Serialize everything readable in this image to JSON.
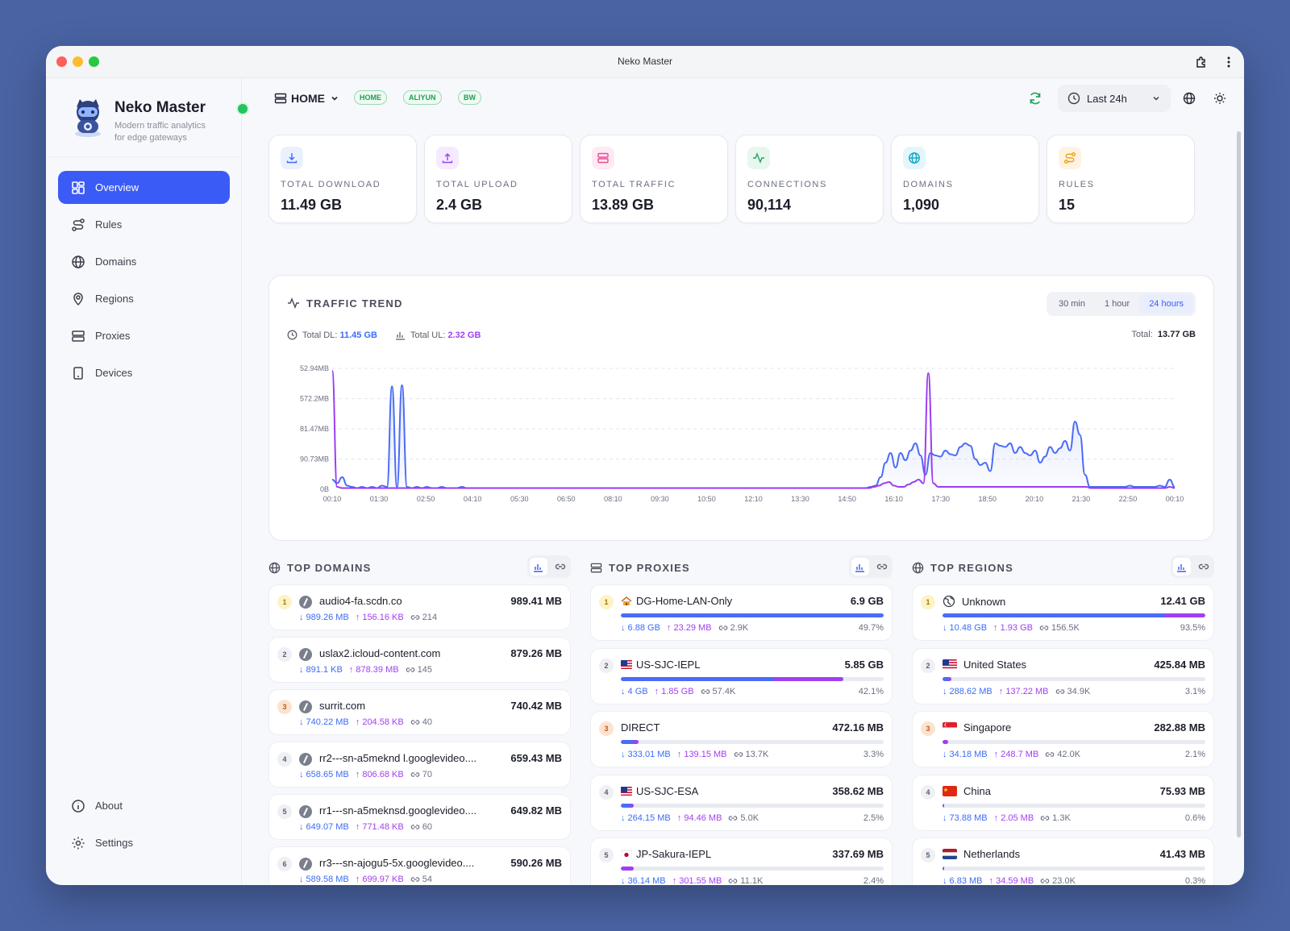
{
  "window": {
    "title": "Neko Master"
  },
  "brand": {
    "name": "Neko Master",
    "tagline_1": "Modern traffic analytics",
    "tagline_2": "for edge gateways"
  },
  "nav": {
    "items": [
      "Overview",
      "Rules",
      "Domains",
      "Regions",
      "Proxies",
      "Devices"
    ],
    "bottom": [
      "About",
      "Settings"
    ]
  },
  "topbar": {
    "gateway": "HOME",
    "chips": [
      "HOME",
      "ALIYUN",
      "BW"
    ],
    "time_range": "Last 24h"
  },
  "stats": [
    {
      "label": "TOTAL DOWNLOAD",
      "value": "11.49 GB",
      "icon": "download-icon",
      "color": "#3b6cf6",
      "bg": "#eaf0fe"
    },
    {
      "label": "TOTAL UPLOAD",
      "value": "2.4 GB",
      "icon": "upload-icon",
      "color": "#a13ff0",
      "bg": "#f4ebfe"
    },
    {
      "label": "TOTAL TRAFFIC",
      "value": "13.89 GB",
      "icon": "server-icon",
      "color": "#ec4899",
      "bg": "#fdeaf3"
    },
    {
      "label": "CONNECTIONS",
      "value": "90,114",
      "icon": "activity-icon",
      "color": "#22a55e",
      "bg": "#e7f7ee"
    },
    {
      "label": "DOMAINS",
      "value": "1,090",
      "icon": "globe-icon",
      "color": "#0ea5c6",
      "bg": "#e4f6fa"
    },
    {
      "label": "RULES",
      "value": "15",
      "icon": "route-icon",
      "color": "#f59e0b",
      "bg": "#fef3e2"
    }
  ],
  "trend": {
    "title": "TRAFFIC TREND",
    "ranges": [
      "30 min",
      "1 hour",
      "24 hours"
    ],
    "active_range": "24 hours",
    "total_dl_label": "Total DL:",
    "total_dl": "11.45 GB",
    "total_ul_label": "Total UL:",
    "total_ul": "2.32 GB",
    "total_label": "Total:",
    "total": "13.77 GB"
  },
  "chart_data": {
    "type": "area",
    "y_tick_labels": [
      "52.94MB",
      "572.2MB",
      "81.47MB",
      "90.73MB",
      "0B"
    ],
    "x_tick_labels": [
      "00:10",
      "01:30",
      "02:50",
      "04:10",
      "05:30",
      "06:50",
      "08:10",
      "09:30",
      "10:50",
      "12:10",
      "13:30",
      "14:50",
      "16:10",
      "17:30",
      "18:50",
      "20:10",
      "21:30",
      "22:50",
      "00:10"
    ],
    "grid": true,
    "series": [
      {
        "color": "#4a6cf7",
        "values": [
          0.08,
          0.05,
          0.1,
          0.03,
          0.02,
          0.01,
          0.02,
          0.01,
          0.02,
          0.01,
          0.03,
          0.02,
          0.85,
          0.02,
          0.86,
          0.02,
          0.01,
          0.02,
          0.01,
          0.02,
          0.01,
          0.01,
          0.02,
          0.01,
          0.01,
          0.01,
          0.02,
          0.01,
          0.01,
          0.01,
          0.01,
          0.01,
          0.01,
          0.01,
          0.01,
          0.01,
          0.01,
          0.01,
          0.01,
          0.01,
          0.01,
          0.01,
          0.01,
          0.01,
          0.01,
          0.01,
          0.01,
          0.01,
          0.01,
          0.01,
          0.01,
          0.01,
          0.01,
          0.01,
          0.01,
          0.01,
          0.01,
          0.01,
          0.01,
          0.01,
          0.01,
          0.01,
          0.01,
          0.01,
          0.01,
          0.01,
          0.01,
          0.01,
          0.01,
          0.01,
          0.01,
          0.01,
          0.01,
          0.01,
          0.01,
          0.01,
          0.01,
          0.01,
          0.01,
          0.01,
          0.01,
          0.01,
          0.01,
          0.01,
          0.01,
          0.01,
          0.01,
          0.01,
          0.01,
          0.01,
          0.01,
          0.01,
          0.01,
          0.01,
          0.01,
          0.01,
          0.01,
          0.01,
          0.01,
          0.01,
          0.01,
          0.01,
          0.01,
          0.01,
          0.01,
          0.01,
          0.01,
          0.01,
          0.02,
          0.03,
          0.1,
          0.22,
          0.3,
          0.18,
          0.3,
          0.24,
          0.32,
          0.38,
          0.28,
          0.12,
          0.3,
          0.28,
          0.27,
          0.32,
          0.29,
          0.28,
          0.35,
          0.38,
          0.36,
          0.25,
          0.2,
          0.22,
          0.15,
          0.38,
          0.36,
          0.35,
          0.38,
          0.3,
          0.35,
          0.3,
          0.28,
          0.32,
          0.22,
          0.27,
          0.35,
          0.3,
          0.34,
          0.4,
          0.32,
          0.56,
          0.45,
          0.12,
          0.02,
          0.02,
          0.02,
          0.02,
          0.02,
          0.02,
          0.02,
          0.02,
          0.03,
          0.02,
          0.02,
          0.02,
          0.02,
          0.02,
          0.03,
          0.02,
          0.08,
          0.02
        ],
        "name": ""
      },
      {
        "color": "#9b3df0",
        "values": [
          0.98,
          0.02,
          0.01,
          0.01,
          0.01,
          0.01,
          0.01,
          0.01,
          0.01,
          0.01,
          0.01,
          0.01,
          0.01,
          0.01,
          0.01,
          0.01,
          0.01,
          0.01,
          0.01,
          0.01,
          0.01,
          0.01,
          0.01,
          0.01,
          0.01,
          0.01,
          0.01,
          0.01,
          0.01,
          0.01,
          0.01,
          0.01,
          0.01,
          0.01,
          0.01,
          0.01,
          0.01,
          0.01,
          0.01,
          0.01,
          0.01,
          0.01,
          0.01,
          0.01,
          0.01,
          0.01,
          0.01,
          0.01,
          0.01,
          0.01,
          0.01,
          0.01,
          0.01,
          0.01,
          0.01,
          0.01,
          0.01,
          0.01,
          0.01,
          0.01,
          0.01,
          0.01,
          0.01,
          0.01,
          0.01,
          0.01,
          0.01,
          0.01,
          0.01,
          0.01,
          0.01,
          0.01,
          0.01,
          0.01,
          0.01,
          0.01,
          0.01,
          0.01,
          0.01,
          0.01,
          0.01,
          0.01,
          0.01,
          0.01,
          0.01,
          0.01,
          0.01,
          0.01,
          0.01,
          0.01,
          0.01,
          0.01,
          0.01,
          0.01,
          0.01,
          0.01,
          0.01,
          0.01,
          0.01,
          0.01,
          0.01,
          0.01,
          0.01,
          0.01,
          0.01,
          0.01,
          0.01,
          0.01,
          0.01,
          0.01,
          0.02,
          0.03,
          0.05,
          0.06,
          0.03,
          0.02,
          0.02,
          0.04,
          0.06,
          0.08,
          0.05,
          0.96,
          0.05,
          0.02,
          0.02,
          0.02,
          0.02,
          0.02,
          0.02,
          0.02,
          0.02,
          0.02,
          0.02,
          0.02,
          0.02,
          0.02,
          0.02,
          0.02,
          0.02,
          0.02,
          0.02,
          0.02,
          0.02,
          0.02,
          0.02,
          0.02,
          0.02,
          0.02,
          0.02,
          0.02,
          0.02,
          0.02,
          0.02,
          0.02,
          0.01,
          0.01,
          0.01,
          0.01,
          0.01,
          0.01,
          0.01,
          0.01,
          0.01,
          0.01,
          0.01,
          0.01,
          0.01,
          0.01,
          0.01,
          0.01,
          0.02,
          0.01
        ],
        "name": ""
      }
    ]
  },
  "top_domains": {
    "title": "TOP DOMAINS",
    "items": [
      {
        "rank": "1",
        "name": "audio4-fa.scdn.co",
        "value": "989.41 MB",
        "dl": "↓ 989.26 MB",
        "ul": "↑ 156.16 KB",
        "count": "214"
      },
      {
        "rank": "2",
        "name": "uslax2.icloud-content.com",
        "value": "879.26 MB",
        "dl": "↓ 891.1 KB",
        "ul": "↑ 878.39 MB",
        "count": "145"
      },
      {
        "rank": "3",
        "name": "surrit.com",
        "value": "740.42 MB",
        "dl": "↓ 740.22 MB",
        "ul": "↑ 204.58 KB",
        "count": "40"
      },
      {
        "rank": "4",
        "name": "rr2---sn-a5meknd l.googlevideo....",
        "value": "659.43 MB",
        "dl": "↓ 658.65 MB",
        "ul": "↑ 806.68 KB",
        "count": "70"
      },
      {
        "rank": "5",
        "name": "rr1---sn-a5meknsd.googlevideo....",
        "value": "649.82 MB",
        "dl": "↓ 649.07 MB",
        "ul": "↑ 771.48 KB",
        "count": "60"
      },
      {
        "rank": "6",
        "name": "rr3---sn-ajogu5-5x.googlevideo....",
        "value": "590.26 MB",
        "dl": "↓ 589.58 MB",
        "ul": "↑ 699.97 KB",
        "count": "54"
      }
    ]
  },
  "top_proxies": {
    "title": "TOP PROXIES",
    "items": [
      {
        "rank": "1",
        "name": "DG-Home-LAN-Only",
        "prefix": "🏠",
        "value": "6.9 GB",
        "dl": "↓ 6.88 GB",
        "ul": "↑ 23.29 MB",
        "count": "2.9K",
        "pct": "49.7%",
        "share": 1.0,
        "dl_share": 0.997
      },
      {
        "rank": "2",
        "name": "US-SJC-IEPL",
        "prefix": "🇺🇸",
        "value": "5.85 GB",
        "dl": "↓ 4 GB",
        "ul": "↑ 1.85 GB",
        "count": "57.4K",
        "pct": "42.1%",
        "share": 0.847,
        "dl_share": 0.684
      },
      {
        "rank": "3",
        "name": "DIRECT",
        "prefix": "",
        "value": "472.16 MB",
        "dl": "↓ 333.01 MB",
        "ul": "↑ 139.15 MB",
        "count": "13.7K",
        "pct": "3.3%",
        "share": 0.067,
        "dl_share": 0.705
      },
      {
        "rank": "4",
        "name": "US-SJC-ESA",
        "prefix": "🇺🇸",
        "value": "358.62 MB",
        "dl": "↓ 264.15 MB",
        "ul": "↑ 94.46 MB",
        "count": "5.0K",
        "pct": "2.5%",
        "share": 0.05,
        "dl_share": 0.737
      },
      {
        "rank": "5",
        "name": "JP-Sakura-IEPL",
        "prefix": "🇯🇵",
        "value": "337.69 MB",
        "dl": "↓ 36.14 MB",
        "ul": "↑ 301.55 MB",
        "count": "11.1K",
        "pct": "2.4%",
        "share": 0.048,
        "dl_share": 0.107
      }
    ]
  },
  "top_regions": {
    "title": "TOP REGIONS",
    "items": [
      {
        "rank": "1",
        "name": "Unknown",
        "flag": "unknown",
        "value": "12.41 GB",
        "dl": "↓ 10.48 GB",
        "ul": "↑ 1.93 GB",
        "count": "156.5K",
        "pct": "93.5%",
        "share": 1.0,
        "dl_share": 0.845
      },
      {
        "rank": "2",
        "name": "United States",
        "flag": "us",
        "value": "425.84 MB",
        "dl": "↓ 288.62 MB",
        "ul": "↑ 137.22 MB",
        "count": "34.9K",
        "pct": "3.1%",
        "share": 0.034,
        "dl_share": 0.678
      },
      {
        "rank": "3",
        "name": "Singapore",
        "flag": "sg",
        "value": "282.88 MB",
        "dl": "↓ 34.18 MB",
        "ul": "↑ 248.7 MB",
        "count": "42.0K",
        "pct": "2.1%",
        "share": 0.023,
        "dl_share": 0.121
      },
      {
        "rank": "4",
        "name": "China",
        "flag": "cn",
        "value": "75.93 MB",
        "dl": "↓ 73.88 MB",
        "ul": "↑ 2.05 MB",
        "count": "1.3K",
        "pct": "0.6%",
        "share": 0.006,
        "dl_share": 0.973
      },
      {
        "rank": "5",
        "name": "Netherlands",
        "flag": "nl",
        "value": "41.43 MB",
        "dl": "↓ 6.83 MB",
        "ul": "↑ 34.59 MB",
        "count": "23.0K",
        "pct": "0.3%",
        "share": 0.003,
        "dl_share": 0.165
      }
    ]
  }
}
